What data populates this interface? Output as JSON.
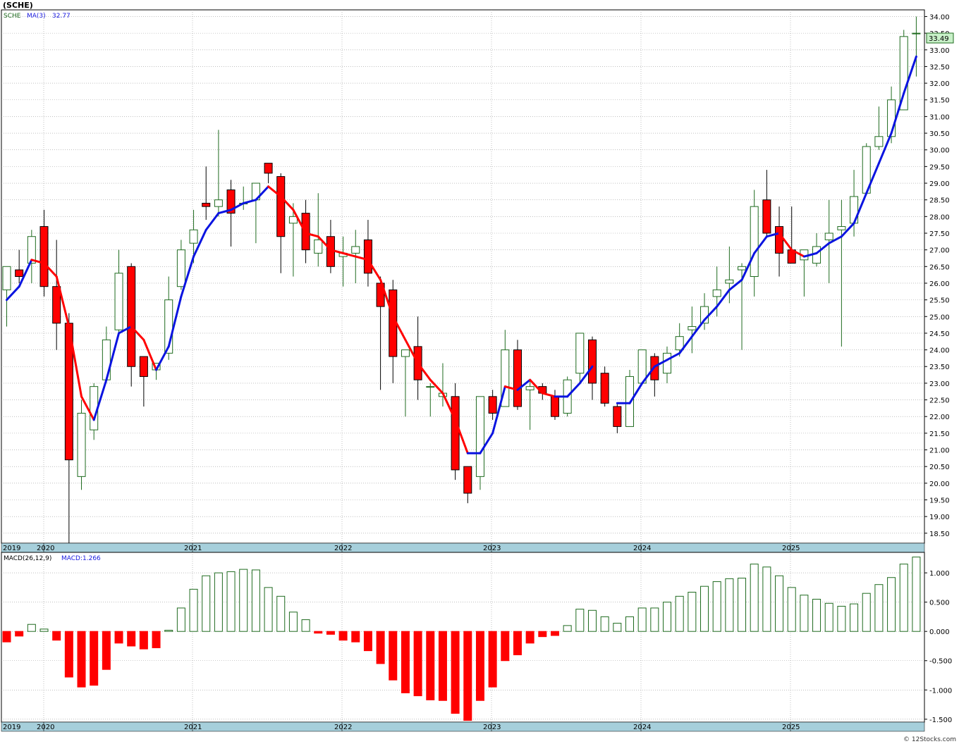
{
  "title": "(SCHE)",
  "watermark": "© 12Stocks.com",
  "price_legend": {
    "symbol": "SCHE",
    "ma_label": "MA(3)",
    "ma_value": "32.77"
  },
  "macd_legend": {
    "label": "MACD(26,12,9)",
    "value_label": "MACD:1.266"
  },
  "last_price_badge": "33.49",
  "colors": {
    "up": "#1f6b1f",
    "down": "#ff0000",
    "ma_up": "#0a14e0",
    "ma_down": "#ff0000",
    "band": "#a6cfdb",
    "grid": "#9a9a9a"
  },
  "chart_data": [
    {
      "type": "candlestick",
      "name": "price",
      "x_labels": [
        "2019",
        "2020",
        "2021",
        "2022",
        "2023",
        "2024",
        "2025"
      ],
      "y_ticks": [
        "18.50",
        "19.00",
        "19.50",
        "20.00",
        "20.50",
        "21.00",
        "21.50",
        "22.00",
        "22.50",
        "23.00",
        "23.50",
        "24.00",
        "24.50",
        "25.00",
        "25.50",
        "26.00",
        "26.50",
        "27.00",
        "27.50",
        "28.00",
        "28.50",
        "29.00",
        "29.50",
        "30.00",
        "30.50",
        "31.00",
        "31.50",
        "32.00",
        "32.50",
        "33.00",
        "33.50",
        "34.00"
      ],
      "ylim": [
        18.2,
        34.2
      ],
      "grid": true,
      "candles": [
        {
          "o": 25.8,
          "h": 26.5,
          "l": 24.7,
          "c": 26.5
        },
        {
          "o": 26.4,
          "h": 27.0,
          "l": 26.0,
          "c": 26.2
        },
        {
          "o": 26.6,
          "h": 27.6,
          "l": 26.0,
          "c": 27.4
        },
        {
          "o": 27.7,
          "h": 28.2,
          "l": 25.6,
          "c": 25.9
        },
        {
          "o": 25.9,
          "h": 27.3,
          "l": 24.0,
          "c": 24.8
        },
        {
          "o": 24.8,
          "h": 25.1,
          "l": 18.2,
          "c": 20.7
        },
        {
          "o": 20.2,
          "h": 22.5,
          "l": 19.8,
          "c": 22.1
        },
        {
          "o": 21.6,
          "h": 23.0,
          "l": 21.3,
          "c": 22.9
        },
        {
          "o": 23.1,
          "h": 24.7,
          "l": 23.0,
          "c": 24.3
        },
        {
          "o": 24.6,
          "h": 27.0,
          "l": 24.5,
          "c": 26.3
        },
        {
          "o": 26.5,
          "h": 26.6,
          "l": 22.9,
          "c": 23.5
        },
        {
          "o": 23.8,
          "h": 23.8,
          "l": 22.3,
          "c": 23.2
        },
        {
          "o": 23.4,
          "h": 23.5,
          "l": 23.1,
          "c": 23.6
        },
        {
          "o": 23.9,
          "h": 26.2,
          "l": 23.7,
          "c": 25.5
        },
        {
          "o": 25.9,
          "h": 27.3,
          "l": 25.8,
          "c": 27.0
        },
        {
          "o": 27.2,
          "h": 28.2,
          "l": 26.6,
          "c": 27.6
        },
        {
          "o": 28.4,
          "h": 29.5,
          "l": 27.9,
          "c": 28.3
        },
        {
          "o": 28.3,
          "h": 30.6,
          "l": 28.0,
          "c": 28.5
        },
        {
          "o": 28.8,
          "h": 29.1,
          "l": 27.1,
          "c": 28.1
        },
        {
          "o": 28.4,
          "h": 28.9,
          "l": 28.2,
          "c": 28.4
        },
        {
          "o": 28.5,
          "h": 29.0,
          "l": 27.2,
          "c": 29.0
        },
        {
          "o": 29.6,
          "h": 29.6,
          "l": 29.0,
          "c": 29.3
        },
        {
          "o": 29.2,
          "h": 29.3,
          "l": 26.3,
          "c": 27.4
        },
        {
          "o": 27.8,
          "h": 28.4,
          "l": 26.2,
          "c": 28.0
        },
        {
          "o": 28.1,
          "h": 28.5,
          "l": 26.6,
          "c": 27.0
        },
        {
          "o": 26.9,
          "h": 28.7,
          "l": 26.5,
          "c": 27.3
        },
        {
          "o": 27.4,
          "h": 27.9,
          "l": 26.3,
          "c": 26.5
        },
        {
          "o": 26.8,
          "h": 27.4,
          "l": 25.9,
          "c": 26.9
        },
        {
          "o": 26.9,
          "h": 27.6,
          "l": 26.0,
          "c": 27.1
        },
        {
          "o": 27.3,
          "h": 27.9,
          "l": 25.9,
          "c": 26.3
        },
        {
          "o": 26.0,
          "h": 26.2,
          "l": 22.8,
          "c": 25.3
        },
        {
          "o": 25.8,
          "h": 26.1,
          "l": 23.0,
          "c": 23.8
        },
        {
          "o": 23.8,
          "h": 24.0,
          "l": 22.0,
          "c": 24.0
        },
        {
          "o": 24.1,
          "h": 25.0,
          "l": 22.5,
          "c": 23.1
        },
        {
          "o": 22.9,
          "h": 23.0,
          "l": 22.0,
          "c": 22.9
        },
        {
          "o": 22.6,
          "h": 23.6,
          "l": 22.3,
          "c": 22.7
        },
        {
          "o": 22.6,
          "h": 23.0,
          "l": 20.1,
          "c": 20.4
        },
        {
          "o": 20.5,
          "h": 20.5,
          "l": 19.4,
          "c": 19.7
        },
        {
          "o": 20.2,
          "h": 22.6,
          "l": 19.8,
          "c": 22.6
        },
        {
          "o": 22.6,
          "h": 22.8,
          "l": 21.9,
          "c": 22.1
        },
        {
          "o": 22.3,
          "h": 24.6,
          "l": 22.3,
          "c": 24.0
        },
        {
          "o": 24.0,
          "h": 24.3,
          "l": 22.2,
          "c": 22.3
        },
        {
          "o": 22.8,
          "h": 23.1,
          "l": 21.6,
          "c": 22.9
        },
        {
          "o": 22.9,
          "h": 23.0,
          "l": 22.5,
          "c": 22.7
        },
        {
          "o": 22.6,
          "h": 22.8,
          "l": 21.9,
          "c": 22.0
        },
        {
          "o": 22.1,
          "h": 23.2,
          "l": 22.0,
          "c": 23.1
        },
        {
          "o": 23.3,
          "h": 24.5,
          "l": 23.0,
          "c": 24.5
        },
        {
          "o": 24.3,
          "h": 24.4,
          "l": 22.5,
          "c": 23.0
        },
        {
          "o": 23.3,
          "h": 23.5,
          "l": 22.3,
          "c": 22.4
        },
        {
          "o": 22.3,
          "h": 22.4,
          "l": 21.5,
          "c": 21.7
        },
        {
          "o": 21.7,
          "h": 23.4,
          "l": 21.7,
          "c": 23.2
        },
        {
          "o": 23.0,
          "h": 24.0,
          "l": 23.0,
          "c": 24.0
        },
        {
          "o": 23.8,
          "h": 23.9,
          "l": 22.6,
          "c": 23.1
        },
        {
          "o": 23.3,
          "h": 24.1,
          "l": 23.0,
          "c": 23.9
        },
        {
          "o": 24.0,
          "h": 24.8,
          "l": 23.8,
          "c": 24.4
        },
        {
          "o": 24.6,
          "h": 25.3,
          "l": 23.9,
          "c": 24.7
        },
        {
          "o": 24.8,
          "h": 25.7,
          "l": 24.6,
          "c": 25.3
        },
        {
          "o": 25.6,
          "h": 26.5,
          "l": 25.0,
          "c": 25.8
        },
        {
          "o": 26.0,
          "h": 27.1,
          "l": 25.4,
          "c": 26.1
        },
        {
          "o": 26.4,
          "h": 26.6,
          "l": 24.0,
          "c": 26.5
        },
        {
          "o": 26.2,
          "h": 28.8,
          "l": 25.6,
          "c": 28.3
        },
        {
          "o": 28.5,
          "h": 29.4,
          "l": 27.4,
          "c": 27.5
        },
        {
          "o": 27.7,
          "h": 28.3,
          "l": 26.2,
          "c": 26.9
        },
        {
          "o": 27.0,
          "h": 28.3,
          "l": 26.6,
          "c": 26.6
        },
        {
          "o": 26.7,
          "h": 27.0,
          "l": 25.6,
          "c": 27.0
        },
        {
          "o": 26.6,
          "h": 27.5,
          "l": 26.5,
          "c": 27.1
        },
        {
          "o": 27.3,
          "h": 28.5,
          "l": 26.0,
          "c": 27.5
        },
        {
          "o": 27.6,
          "h": 28.5,
          "l": 24.1,
          "c": 27.7
        },
        {
          "o": 27.8,
          "h": 29.4,
          "l": 27.4,
          "c": 28.6
        },
        {
          "o": 28.7,
          "h": 30.2,
          "l": 28.7,
          "c": 30.1
        },
        {
          "o": 30.1,
          "h": 31.3,
          "l": 30.0,
          "c": 30.4
        },
        {
          "o": 30.4,
          "h": 31.9,
          "l": 30.2,
          "c": 31.5
        },
        {
          "o": 31.2,
          "h": 33.6,
          "l": 31.2,
          "c": 33.4
        },
        {
          "o": 33.5,
          "h": 34.0,
          "l": 32.2,
          "c": 33.5
        }
      ],
      "ma3": [
        25.5,
        25.9,
        26.7,
        26.6,
        26.2,
        24.7,
        22.6,
        21.9,
        23.1,
        24.5,
        24.7,
        24.3,
        23.4,
        24.1,
        25.6,
        26.8,
        27.6,
        28.1,
        28.2,
        28.4,
        28.5,
        28.9,
        28.6,
        28.2,
        27.5,
        27.4,
        27.0,
        26.9,
        26.8,
        26.7,
        26.1,
        25.0,
        24.3,
        23.6,
        23.1,
        22.7,
        21.9,
        20.9,
        20.9,
        21.5,
        22.9,
        22.8,
        23.1,
        22.7,
        22.6,
        22.6,
        23.0,
        23.5,
        null,
        22.4,
        22.4,
        23.0,
        23.5,
        23.7,
        23.9,
        24.4,
        24.9,
        25.3,
        25.8,
        26.1,
        26.9,
        27.4,
        27.5,
        27.0,
        26.8,
        26.9,
        27.2,
        27.4,
        27.8,
        28.7,
        29.6,
        30.5,
        31.7,
        32.8
      ]
    },
    {
      "type": "bar",
      "name": "MACD",
      "x_labels": [
        "2019",
        "2020",
        "2021",
        "2022",
        "2023",
        "2024",
        "2025"
      ],
      "y_ticks": [
        "-1.500",
        "-1.000",
        "-0.500",
        "0.000",
        "0.500",
        "1.000"
      ],
      "ylim": [
        -1.55,
        1.35
      ],
      "grid": true,
      "values": [
        -0.18,
        -0.08,
        0.12,
        0.04,
        -0.15,
        -0.78,
        -0.95,
        -0.92,
        -0.65,
        -0.2,
        -0.25,
        -0.3,
        -0.28,
        0.02,
        0.4,
        0.72,
        0.95,
        1.0,
        1.02,
        1.06,
        1.05,
        0.75,
        0.6,
        0.33,
        0.2,
        -0.03,
        -0.05,
        -0.15,
        -0.18,
        -0.33,
        -0.55,
        -0.83,
        -1.05,
        -1.1,
        -1.17,
        -1.18,
        -1.4,
        -1.52,
        -1.18,
        -0.95,
        -0.5,
        -0.4,
        -0.2,
        -0.09,
        -0.07,
        0.1,
        0.38,
        0.36,
        0.25,
        0.14,
        0.25,
        0.4,
        0.4,
        0.5,
        0.6,
        0.67,
        0.77,
        0.85,
        0.9,
        0.91,
        1.15,
        1.1,
        0.95,
        0.75,
        0.62,
        0.55,
        0.48,
        0.43,
        0.47,
        0.65,
        0.8,
        0.92,
        1.15,
        1.27
      ]
    }
  ]
}
